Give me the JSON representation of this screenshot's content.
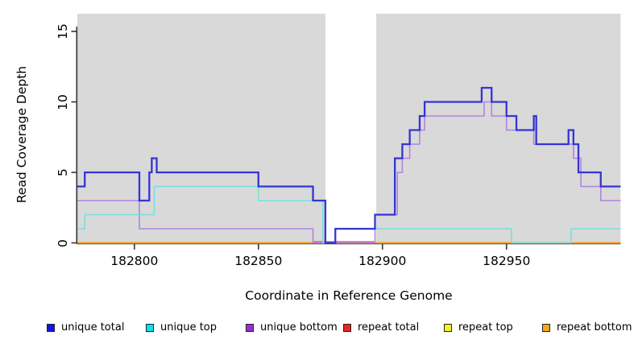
{
  "chart_data": {
    "type": "line",
    "subtype": "step-coverage",
    "title": "",
    "xlabel": "Coordinate in Reference Genome",
    "ylabel": "Read Coverage Depth",
    "xlim": [
      182777,
      182996
    ],
    "ylim": [
      0,
      16.3
    ],
    "x_ticks": [
      "182800",
      "182850",
      "182900",
      "182950"
    ],
    "y_ticks": [
      "0",
      "5",
      "10",
      "15"
    ],
    "grid": false,
    "legend_position": "bottom",
    "panel_bg": "#d9d9d9",
    "mask_region": [
      182877,
      182897.5
    ],
    "mask_color": "#ffffff",
    "series": [
      {
        "name": "repeat top",
        "color": "#f2f22a",
        "line_color": "#f2f22a",
        "segments": []
      },
      {
        "name": "repeat total",
        "color": "#ee2222",
        "line_color": "#cc587e",
        "segments": [
          [
            182872,
            182897,
            0
          ]
        ]
      },
      {
        "name": "repeat bottom",
        "color": "#f5a623",
        "line_color": "#fb9c18",
        "segments": [
          [
            182777,
            182996,
            0
          ]
        ]
      },
      {
        "name": "unique bottom",
        "color": "#9a2fd1",
        "line_color": "#b183e0",
        "segments": [
          [
            182777,
            182802,
            3
          ],
          [
            182802,
            182872,
            1
          ],
          [
            182872,
            182897,
            0
          ],
          [
            182897,
            182906,
            2
          ],
          [
            182906,
            182908,
            5
          ],
          [
            182908,
            182911,
            6
          ],
          [
            182911,
            182915,
            7
          ],
          [
            182915,
            182917,
            8
          ],
          [
            182917,
            182941,
            9
          ],
          [
            182941,
            182944,
            10
          ],
          [
            182944,
            182950,
            9
          ],
          [
            182950,
            182961,
            8
          ],
          [
            182961,
            182977,
            7
          ],
          [
            182977,
            182980,
            6
          ],
          [
            182980,
            182988,
            4
          ],
          [
            182988,
            182996,
            3
          ]
        ]
      },
      {
        "name": "unique top",
        "color": "#00e5ee",
        "line_color": "#7adedd",
        "segments": [
          [
            182777,
            182780,
            1
          ],
          [
            182780,
            182808,
            2
          ],
          [
            182808,
            182850,
            4
          ],
          [
            182850,
            182876,
            3
          ],
          [
            182876,
            182881,
            0
          ],
          [
            182881,
            182952,
            1
          ],
          [
            182952,
            182976,
            0
          ],
          [
            182976,
            182996,
            1
          ]
        ]
      },
      {
        "name": "unique total",
        "color": "#1414e8",
        "line_color": "#3434d4",
        "segments": [
          [
            182777,
            182780,
            4
          ],
          [
            182780,
            182802,
            5
          ],
          [
            182802,
            182806,
            3
          ],
          [
            182806,
            182807,
            5
          ],
          [
            182807,
            182809,
            6
          ],
          [
            182809,
            182850,
            5
          ],
          [
            182850,
            182872,
            4
          ],
          [
            182872,
            182877,
            3
          ],
          [
            182877,
            182881,
            0
          ],
          [
            182881,
            182897,
            1
          ],
          [
            182897,
            182905,
            2
          ],
          [
            182905,
            182908,
            6
          ],
          [
            182908,
            182911,
            7
          ],
          [
            182911,
            182915,
            8
          ],
          [
            182915,
            182917,
            9
          ],
          [
            182917,
            182940,
            10
          ],
          [
            182940,
            182944,
            11
          ],
          [
            182944,
            182950,
            10
          ],
          [
            182950,
            182954,
            9
          ],
          [
            182954,
            182961,
            8
          ],
          [
            182961,
            182962,
            9
          ],
          [
            182962,
            182975,
            7
          ],
          [
            182975,
            182977,
            8
          ],
          [
            182977,
            182979,
            7
          ],
          [
            182979,
            182988,
            5
          ],
          [
            182988,
            182996,
            4
          ]
        ]
      }
    ],
    "legend": [
      {
        "label": "unique total",
        "color": "#1414e8"
      },
      {
        "label": "unique top",
        "color": "#00e5ee"
      },
      {
        "label": "unique bottom",
        "color": "#9a2fd1"
      },
      {
        "label": "repeat total",
        "color": "#ee2222"
      },
      {
        "label": "repeat top",
        "color": "#f2f22a"
      },
      {
        "label": "repeat bottom",
        "color": "#f5a623"
      }
    ]
  }
}
